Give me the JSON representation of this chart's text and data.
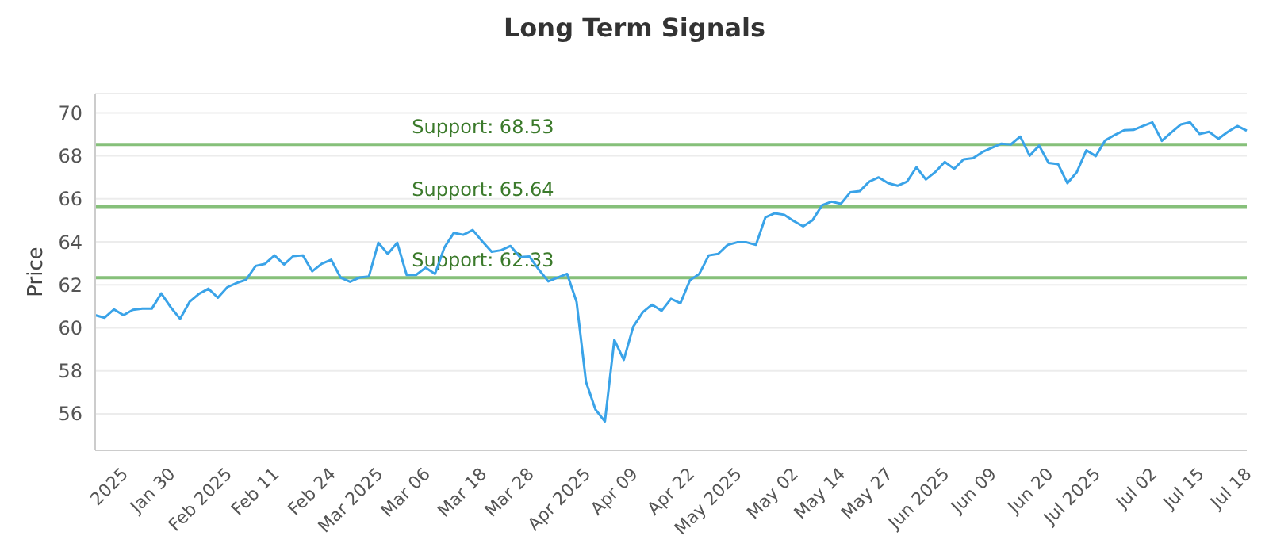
{
  "chart_data": {
    "type": "line",
    "title": "Long Term Signals",
    "ylabel": "Price",
    "categories": [
      null,
      null,
      null,
      "2025",
      null,
      null,
      null,
      null,
      "Jan 30",
      null,
      null,
      null,
      null,
      null,
      "Feb 2025",
      null,
      null,
      null,
      null,
      "Feb 11",
      null,
      null,
      null,
      null,
      null,
      "Feb 24",
      null,
      null,
      null,
      null,
      "Mar 2025",
      null,
      null,
      null,
      null,
      "Mar 06",
      null,
      null,
      null,
      null,
      null,
      "Mar 18",
      null,
      null,
      null,
      null,
      "Mar 28",
      null,
      null,
      null,
      null,
      null,
      "Apr 2025",
      null,
      null,
      null,
      null,
      "Apr 09",
      null,
      null,
      null,
      null,
      null,
      "Apr 22",
      null,
      null,
      null,
      null,
      "May 2025",
      null,
      null,
      null,
      null,
      null,
      "May 02",
      null,
      null,
      null,
      null,
      "May 14",
      null,
      null,
      null,
      null,
      "May 27",
      null,
      null,
      null,
      null,
      null,
      "Jun 2025",
      null,
      null,
      null,
      null,
      "Jun 09",
      null,
      null,
      null,
      null,
      null,
      "Jun 20",
      null,
      null,
      null,
      null,
      "Jul 2025",
      null,
      null,
      null,
      null,
      null,
      "Jul 02",
      null,
      null,
      null,
      null,
      "Jul 15",
      null,
      null,
      null,
      null,
      "Jul 18"
    ],
    "series": [
      {
        "color": "#3aa3e8",
        "values": [
          60.59,
          60.47,
          60.86,
          60.59,
          60.84,
          60.89,
          60.89,
          61.6,
          60.96,
          60.42,
          61.21,
          61.58,
          61.82,
          61.4,
          61.89,
          62.09,
          62.24,
          62.88,
          62.98,
          63.37,
          62.95,
          63.34,
          63.37,
          62.63,
          62.98,
          63.17,
          62.34,
          62.14,
          62.34,
          62.39,
          63.96,
          63.44,
          63.96,
          62.46,
          62.46,
          62.8,
          62.51,
          63.74,
          64.42,
          64.33,
          64.55,
          64.03,
          63.54,
          63.61,
          63.81,
          63.29,
          63.32,
          62.71,
          62.16,
          62.34,
          62.51,
          61.21,
          57.48,
          56.2,
          55.64,
          59.44,
          58.51,
          60.05,
          60.72,
          61.08,
          60.79,
          61.35,
          61.15,
          62.21,
          62.51,
          63.37,
          63.44,
          63.86,
          63.98,
          63.98,
          63.86,
          65.14,
          65.33,
          65.26,
          64.97,
          64.72,
          65.01,
          65.7,
          65.87,
          65.77,
          66.31,
          66.36,
          66.8,
          67.0,
          66.73,
          66.61,
          66.8,
          67.47,
          66.9,
          67.25,
          67.72,
          67.4,
          67.84,
          67.89,
          68.18,
          68.38,
          68.57,
          68.53,
          68.9,
          68.01,
          68.48,
          67.67,
          67.62,
          66.73,
          67.25,
          68.26,
          67.99,
          68.72,
          68.97,
          69.19,
          69.21,
          69.39,
          69.56,
          68.7,
          69.09,
          69.46,
          69.56,
          69.02,
          69.12,
          68.8,
          69.12,
          69.39,
          69.17
        ]
      }
    ],
    "ylim": [
      54.3,
      70.9
    ],
    "yticks": [
      56,
      58,
      60,
      62,
      64,
      66,
      68,
      70
    ],
    "grid": "y",
    "marker": "none",
    "line_style": "solid",
    "ref_lines": [
      {
        "axis": "y",
        "value": 68.53,
        "label": "Support: 68.53",
        "color": "#86c07a"
      },
      {
        "axis": "y",
        "value": 65.64,
        "label": "Support: 65.64",
        "color": "#86c07a"
      },
      {
        "axis": "y",
        "value": 62.33,
        "label": "Support: 62.33",
        "color": "#86c07a"
      }
    ]
  }
}
